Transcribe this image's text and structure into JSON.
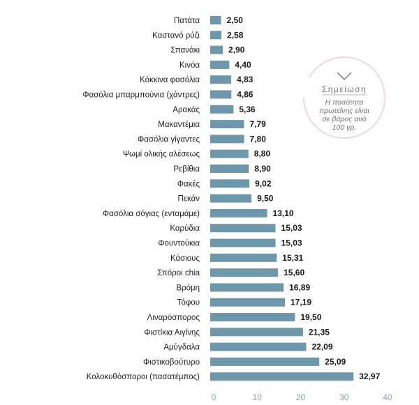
{
  "chart_data": {
    "type": "bar",
    "orientation": "horizontal",
    "categories": [
      "Πατάτα",
      "Καστανό ρύζι",
      "Σπανάκι",
      "Κινόα",
      "Κόκκινα φασόλια",
      "Φασόλια μπαρμπούνια (χάντρες)",
      "Αρακάς",
      "Μακαντέμια",
      "Φασόλια γίγαντες",
      "Ψωμί ολικής αλέσεως",
      "Ρεβίθια",
      "Φακές",
      "Πεκάν",
      "Φασόλια σόγιας (ενταμάμε)",
      "Καρύδια",
      "Φουντούκια",
      "Κάσιους",
      "Σπόροι chia",
      "Βρόμη",
      "Τόφου",
      "Λιναρόσπορος",
      "Φιστίκια Αιγίνης",
      "Αμύγδαλα",
      "Φιστικοβούτυρο",
      "Κολοκυθόσποροι (πασατέμπος)"
    ],
    "values": [
      2.5,
      2.58,
      2.9,
      4.4,
      4.83,
      4.86,
      5.36,
      7.79,
      7.8,
      8.8,
      8.9,
      9.02,
      9.5,
      13.1,
      15.03,
      15.03,
      15.31,
      15.6,
      16.89,
      17.19,
      19.5,
      21.35,
      22.09,
      25.09,
      32.97
    ],
    "value_labels": [
      "2,50",
      "2,58",
      "2,90",
      "4,40",
      "4,83",
      "4,86",
      "5,36",
      "7,79",
      "7,80",
      "8,80",
      "8,90",
      "9,02",
      "9,50",
      "13,10",
      "15,03",
      "15,03",
      "15,31",
      "15,60",
      "16,89",
      "17,19",
      "19,50",
      "21,35",
      "22,09",
      "25,09",
      "32,97"
    ],
    "xticks": [
      0,
      10,
      20,
      30,
      40
    ],
    "xlim": [
      0,
      40
    ],
    "grid": false,
    "bar_color": "#6f97ab",
    "tick_color": "#7fa9bc"
  },
  "note": {
    "title": "Σημείωση",
    "lines": [
      "Η ποσότητα",
      "πρωτεΐνης είναι",
      "σε βάρος ανά",
      "100 γρ."
    ],
    "ring_color": "#f2d6df"
  }
}
